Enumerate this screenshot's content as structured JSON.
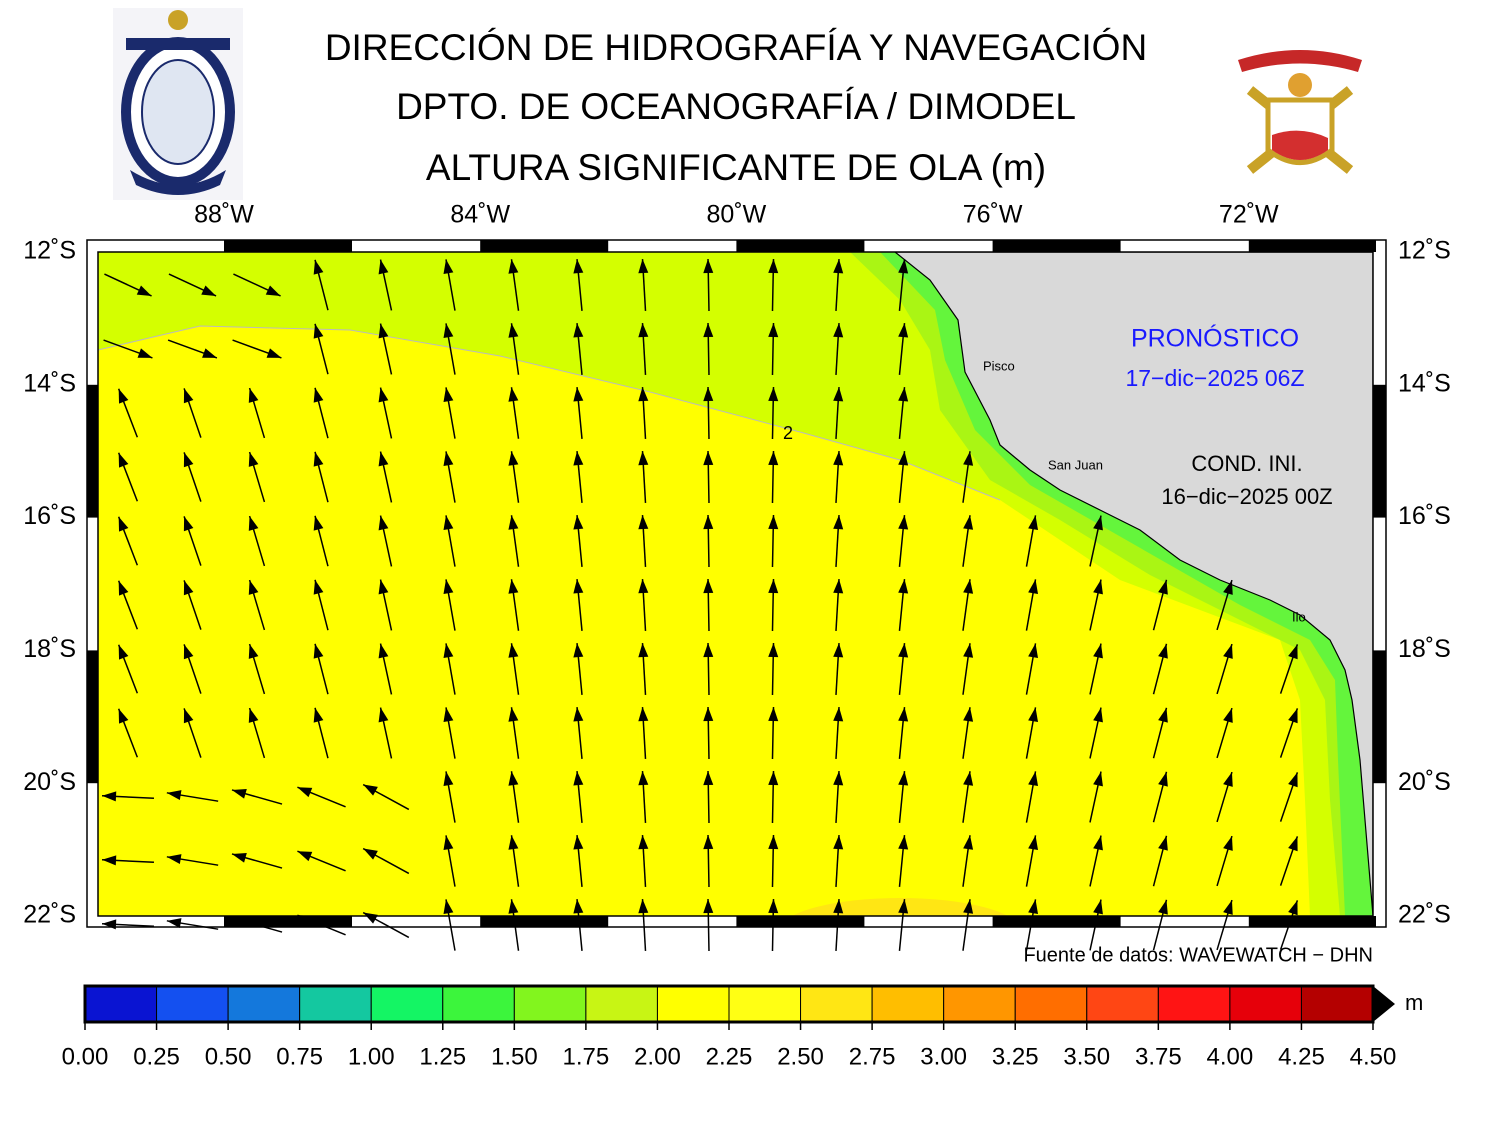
{
  "header": {
    "lines": [
      "DIRECCIÓN DE HIDROGRAFÍA Y NAVEGACIÓN",
      "DPTO. DE OCEANOGRAFÍA / DIMODEL",
      "ALTURA SIGNIFICANTE DE OLA (m)"
    ]
  },
  "map": {
    "lon_ticks": [
      "88˚W",
      "84˚W",
      "80˚W",
      "76˚W",
      "72˚W"
    ],
    "lat_ticks": [
      "12˚S",
      "14˚S",
      "16˚S",
      "18˚S",
      "20˚S",
      "22˚S"
    ],
    "places": [
      "Pisco",
      "San Juan",
      "Ilo"
    ],
    "contour_label": "2",
    "forecast": {
      "title": "PRONÓSTICO",
      "date": "17−dic−2025 06Z"
    },
    "init": {
      "title": "COND. INI.",
      "date": "16−dic−2025 00Z"
    }
  },
  "source": "Fuente de datos: WAVEWATCH − DHN",
  "colorbar": {
    "unit": "m",
    "range": [
      0,
      4.5
    ],
    "ticks": [
      {
        "value": 0,
        "label": "0.00"
      },
      {
        "value": 0.25,
        "label": "0.25"
      },
      {
        "value": 0.5,
        "label": "0.50"
      },
      {
        "value": 0.75,
        "label": "0.75"
      },
      {
        "value": 1,
        "label": "1.00"
      },
      {
        "value": 1.25,
        "label": "1.25"
      },
      {
        "value": 1.5,
        "label": "1.50"
      },
      {
        "value": 1.75,
        "label": "1.75"
      },
      {
        "value": 2,
        "label": "2.00"
      },
      {
        "value": 2.25,
        "label": "2.25"
      },
      {
        "value": 2.5,
        "label": "2.50"
      },
      {
        "value": 2.75,
        "label": "2.75"
      },
      {
        "value": 3,
        "label": "3.00"
      },
      {
        "value": 3.25,
        "label": "3.25"
      },
      {
        "value": 3.5,
        "label": "3.50"
      },
      {
        "value": 3.75,
        "label": "3.75"
      },
      {
        "value": 4,
        "label": "4.00"
      },
      {
        "value": 4.25,
        "label": "4.25"
      },
      {
        "value": 4.5,
        "label": "4.50"
      }
    ],
    "colors": [
      "#0a14d2",
      "#1450f0",
      "#1478dc",
      "#14c8a0",
      "#14f564",
      "#3cf53c",
      "#82f51e",
      "#c8f514",
      "#ffff00",
      "#ffff14",
      "#ffe614",
      "#ffbe00",
      "#ff9600",
      "#ff6e00",
      "#ff4614",
      "#ff1414",
      "#e6000a",
      "#b40000"
    ]
  }
}
